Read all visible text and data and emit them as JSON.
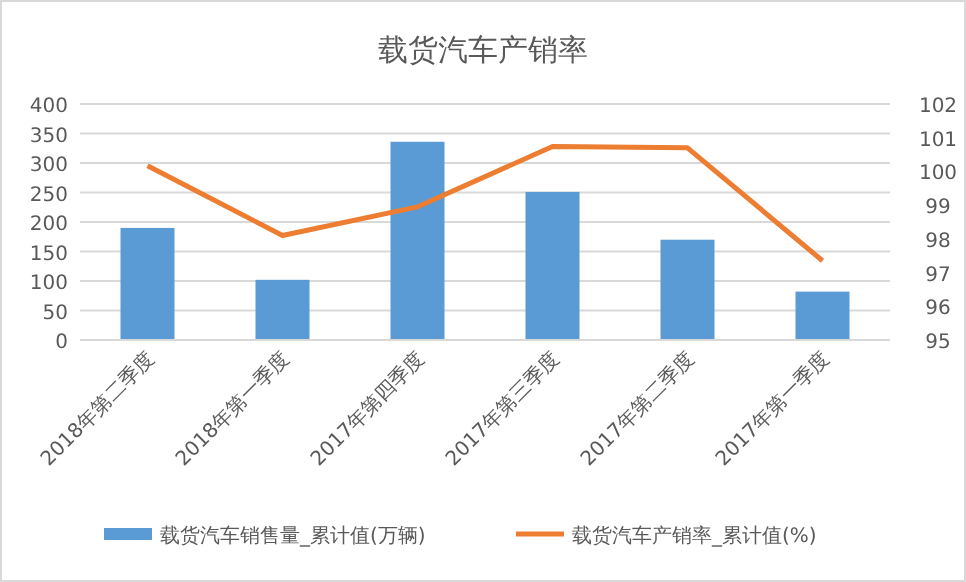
{
  "chart_data": {
    "type": "bar",
    "title": "载货汽车产销率",
    "categories": [
      "2018年第二季度",
      "2018年第一季度",
      "2017年第四季度",
      "2017年第三季度",
      "2017年第二季度",
      "2017年第一季度"
    ],
    "series": [
      {
        "name": "载货汽车销售量_累计值(万辆)",
        "color": "#5b9bd5",
        "values": [
          190,
          102,
          336,
          251,
          170,
          82
        ]
      },
      {
        "name": "载货汽车产销率_累计值(%)",
        "type": "line",
        "axis": "y2",
        "color": "#ed7d31",
        "values": [
          100.17,
          98.1,
          98.95,
          100.74,
          100.7,
          97.35
        ]
      }
    ],
    "ylim": [
      0,
      400
    ],
    "yticks": [
      0,
      50,
      100,
      150,
      200,
      250,
      300,
      350,
      400
    ],
    "y2lim": [
      95,
      102
    ],
    "y2ticks": [
      95,
      96,
      97,
      98,
      99,
      100,
      101,
      102
    ],
    "grid": "y",
    "legend": "bottom"
  }
}
